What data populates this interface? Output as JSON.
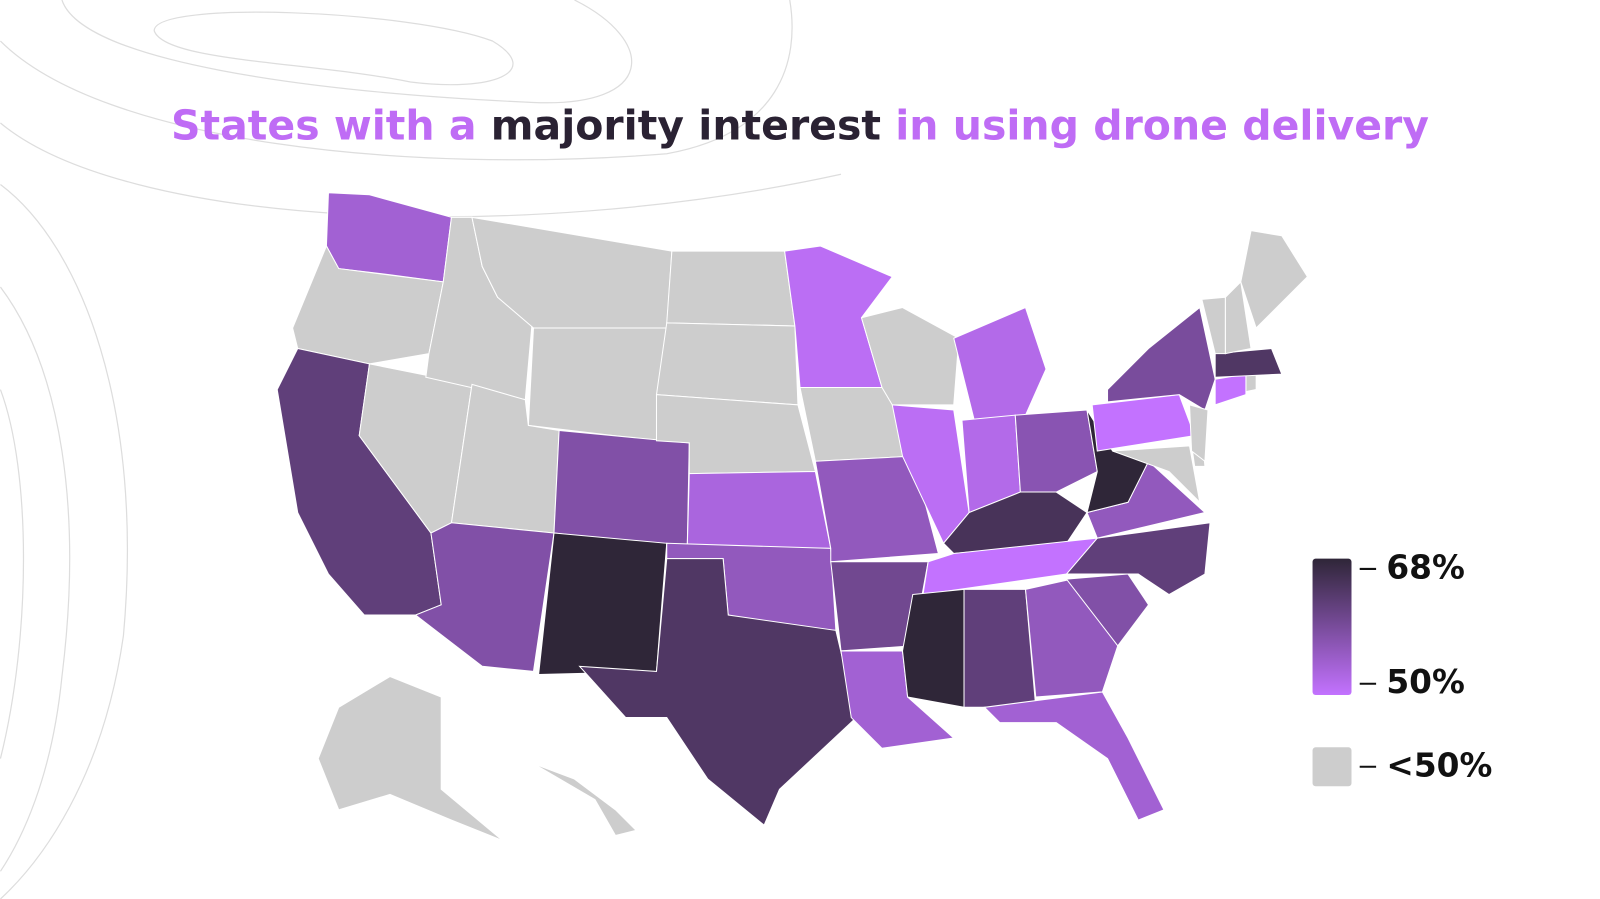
{
  "chart_data": {
    "type": "choropleth",
    "title_parts": [
      {
        "text": "States with a ",
        "color": "#bf6cf5"
      },
      {
        "text": "majority interest",
        "color": "#2a2233"
      },
      {
        "text": " in using drone delivery",
        "color": "#bf6cf5"
      }
    ],
    "values": [
      54,
      null,
      62,
      null,
      null,
      null,
      null,
      null,
      58,
      58,
      68,
      null,
      null,
      null,
      53,
      56,
      64,
      51,
      null,
      56,
      60,
      54,
      null,
      51,
      52,
      52,
      57,
      65,
      50,
      68,
      62,
      56,
      54,
      58,
      62,
      56,
      68,
      null,
      null,
      50,
      null,
      59,
      50,
      null,
      64,
      null,
      null,
      null,
      null,
      null
    ],
    "scale": [
      50,
      68
    ],
    "color_scale": [
      "#c372ff",
      "#2f2638"
    ],
    "no_data_color": "#cdcdcd",
    "legend_ticks": [
      {
        "value": 68,
        "label": "68%"
      },
      {
        "value": 50,
        "label": "50%"
      }
    ],
    "no_data_label": "<50%"
  }
}
